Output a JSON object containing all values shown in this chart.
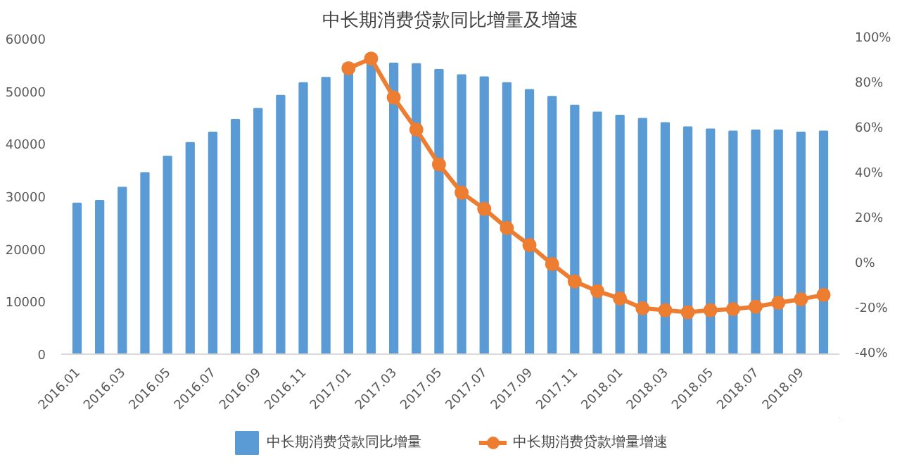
{
  "chart_data": {
    "type": "bar",
    "title": "中长期消费贷款同比增量及增速",
    "categories": [
      "2016.01",
      null,
      "2016.03",
      null,
      "2016.05",
      null,
      "2016.07",
      null,
      "2016.09",
      null,
      "2016.11",
      null,
      "2017.01",
      null,
      "2017.03",
      null,
      "2017.05",
      null,
      "2017.07",
      null,
      "2017.09",
      null,
      "2017.11",
      null,
      "2018.01",
      null,
      "2018.03",
      null,
      "2018.05",
      null,
      "2018.07",
      null,
      "2018.09",
      null
    ],
    "series": [
      {
        "name": "中长期消费贷款同比增量",
        "color": "#5b9bd5",
        "values": [
          28700,
          29200,
          31700,
          34500,
          37600,
          40200,
          42200,
          44600,
          46700,
          49200,
          51600,
          52600,
          54000,
          55400,
          55300,
          55200,
          54100,
          53100,
          52700,
          51600,
          50300,
          49000,
          47300,
          46000,
          45400,
          44800,
          44000,
          43200,
          42800,
          42400,
          42600,
          42600,
          42200,
          42400
        ]
      },
      {
        "name": "中长期消费贷款增量增速",
        "type": "line",
        "axis": "y2",
        "color": "#ed7d31",
        "marker": "circle",
        "values": [
          null,
          null,
          null,
          null,
          null,
          null,
          null,
          null,
          null,
          null,
          null,
          null,
          86.9,
          91.2,
          73.9,
          59.7,
          44.2,
          31.7,
          24.5,
          16.0,
          8.4,
          0,
          -7.7,
          -12.0,
          -15.3,
          -19.6,
          -20.5,
          -21.4,
          -20.5,
          -20.0,
          -18.9,
          -17.2,
          -15.6,
          -13.7
        ]
      }
    ],
    "ylim": [
      0,
      60000
    ],
    "yticks": [
      0,
      10000,
      20000,
      30000,
      40000,
      50000,
      60000
    ],
    "y2lim": [
      -40,
      100
    ],
    "y2ticks": [
      {
        "value": -40,
        "label": "-40%"
      },
      {
        "value": -20,
        "label": "-20%"
      },
      {
        "value": 0,
        "label": "0%"
      },
      {
        "value": 20,
        "label": "20%"
      },
      {
        "value": 40,
        "label": "40%"
      },
      {
        "value": 60,
        "label": "60%"
      },
      {
        "value": 80,
        "label": "80%"
      },
      {
        "value": 100,
        "label": "100%"
      }
    ],
    "grid": false,
    "legend": "bottom"
  }
}
